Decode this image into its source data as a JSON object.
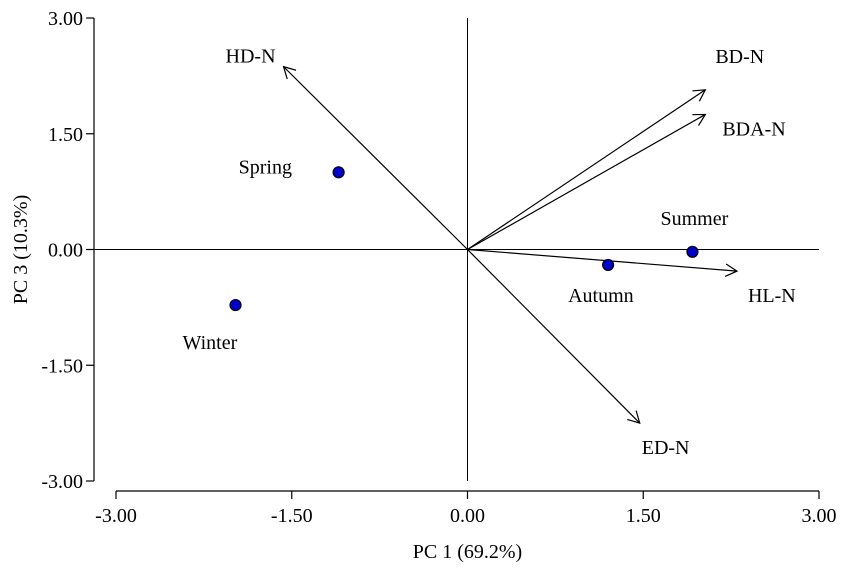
{
  "chart_data": {
    "type": "scatter",
    "title": "",
    "xlabel": "PC 1 (69.2%)",
    "ylabel": "PC 3 (10.3%)",
    "xlim": [
      -3.0,
      3.0
    ],
    "ylim": [
      -3.0,
      3.0
    ],
    "x_ticks": [
      "-3.00",
      "-1.50",
      "0.00",
      "1.50",
      "3.00"
    ],
    "y_ticks": [
      "3.00",
      "1.50",
      "0.00",
      "-1.50",
      "-3.00"
    ],
    "grid": false,
    "points": [
      {
        "label": "Spring",
        "x": -1.1,
        "y": 1.0
      },
      {
        "label": "Winter",
        "x": -1.98,
        "y": -0.72
      },
      {
        "label": "Autumn",
        "x": 1.2,
        "y": -0.2
      },
      {
        "label": "Summer",
        "x": 1.92,
        "y": -0.03
      }
    ],
    "vectors": [
      {
        "label": "HD-N",
        "x": -1.57,
        "y": 2.37
      },
      {
        "label": "BD-N",
        "x": 2.03,
        "y": 2.07
      },
      {
        "label": "BDA-N",
        "x": 2.03,
        "y": 1.75
      },
      {
        "label": "HL-N",
        "x": 2.3,
        "y": -0.28
      },
      {
        "label": "ED-N",
        "x": 1.47,
        "y": -2.25
      }
    ],
    "colors": {
      "point_fill": "#0000cc",
      "point_stroke": "#000000",
      "line": "#000000"
    }
  }
}
